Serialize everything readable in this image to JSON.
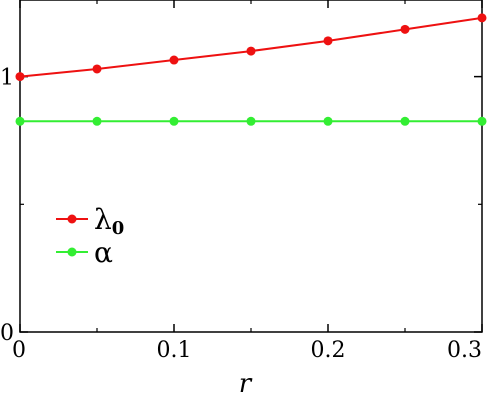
{
  "chart_data": {
    "type": "line",
    "x": [
      0,
      0.05,
      0.1,
      0.15,
      0.2,
      0.25,
      0.3
    ],
    "series": [
      {
        "name": "λ",
        "name_sub": "0",
        "color": "#ee1111",
        "values": [
          1.0,
          1.03,
          1.065,
          1.1,
          1.14,
          1.185,
          1.23
        ]
      },
      {
        "name": "α",
        "name_sub": "",
        "color": "#33ee33",
        "values": [
          0.825,
          0.825,
          0.825,
          0.825,
          0.825,
          0.825,
          0.825
        ]
      }
    ],
    "xlabel": "r",
    "ylabel": "",
    "xlim": [
      0,
      0.3
    ],
    "ylim": [
      0,
      1.3
    ],
    "xticks": [
      0,
      0.1,
      0.2,
      0.3
    ],
    "xtick_labels": [
      "0",
      "0.1",
      "0.2",
      "0.3"
    ],
    "yticks": [
      0,
      1
    ],
    "ytick_labels": [
      "0",
      "1"
    ],
    "grid": false,
    "legend_position": "left-center"
  }
}
